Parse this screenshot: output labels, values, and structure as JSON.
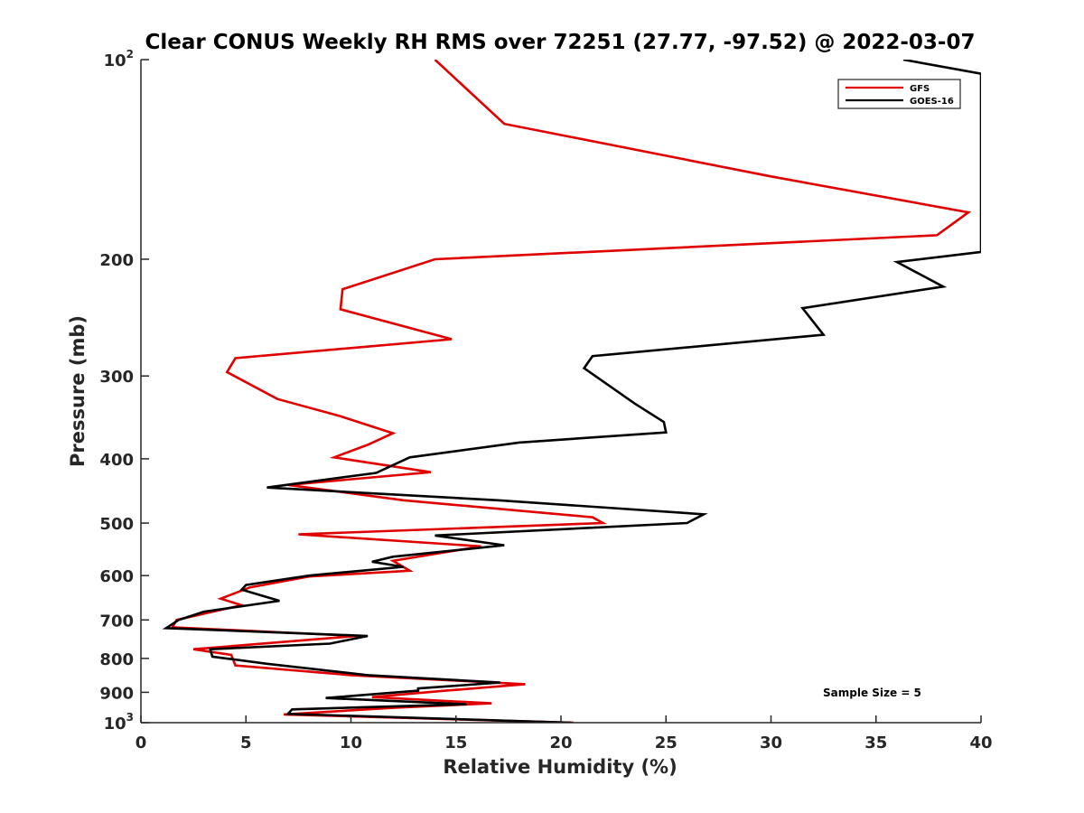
{
  "chart_data": {
    "type": "line",
    "title": "Clear CONUS Weekly RH RMS over 72251 (27.77, -97.52) @ 2022-03-07",
    "xlabel": "Relative Humidity (%)",
    "ylabel": "Pressure (mb)",
    "xlim": [
      0,
      40
    ],
    "ylim": [
      100,
      1000
    ],
    "y_scale": "log",
    "y_reversed": true,
    "x_ticks": [
      "0",
      "5",
      "10",
      "15",
      "20",
      "25",
      "30",
      "35",
      "40"
    ],
    "y_ticks": [
      {
        "value": 100,
        "base": "10",
        "exp": "2"
      },
      {
        "value": 200,
        "label": "200"
      },
      {
        "value": 300,
        "label": "300"
      },
      {
        "value": 400,
        "label": "400"
      },
      {
        "value": 500,
        "label": "500"
      },
      {
        "value": 600,
        "label": "600"
      },
      {
        "value": 700,
        "label": "700"
      },
      {
        "value": 800,
        "label": "800"
      },
      {
        "value": 900,
        "label": "900"
      },
      {
        "value": 1000,
        "base": "10",
        "exp": "3"
      }
    ],
    "grid": false,
    "legend_position": "top-right",
    "annotation": "Sample Size = 5",
    "series": [
      {
        "name": "GFS",
        "color": "#e00000",
        "points": [
          [
            14.0,
            100
          ],
          [
            17.3,
            125
          ],
          [
            30.0,
            150
          ],
          [
            39.4,
            170
          ],
          [
            37.9,
            184
          ],
          [
            14.0,
            200
          ],
          [
            9.6,
            222
          ],
          [
            9.5,
            238
          ],
          [
            14.8,
            264
          ],
          [
            4.5,
            282
          ],
          [
            4.1,
            296
          ],
          [
            6.5,
            325
          ],
          [
            9.5,
            345
          ],
          [
            12.0,
            366
          ],
          [
            10.8,
            381
          ],
          [
            9.2,
            398
          ],
          [
            13.8,
            419
          ],
          [
            7.0,
            438
          ],
          [
            12.5,
            462
          ],
          [
            21.5,
            490
          ],
          [
            22.0,
            500
          ],
          [
            7.5,
            520
          ],
          [
            16.2,
            542
          ],
          [
            12.0,
            570
          ],
          [
            12.8,
            590
          ],
          [
            8.0,
            602
          ],
          [
            5.2,
            625
          ],
          [
            3.8,
            650
          ],
          [
            4.8,
            665
          ],
          [
            3.0,
            685
          ],
          [
            1.7,
            700
          ],
          [
            1.5,
            718
          ],
          [
            10.3,
            740
          ],
          [
            2.5,
            775
          ],
          [
            4.3,
            790
          ],
          [
            4.5,
            820
          ],
          [
            10.0,
            848
          ],
          [
            18.3,
            875
          ],
          [
            14.5,
            895
          ],
          [
            11.0,
            915
          ],
          [
            16.7,
            935
          ],
          [
            12.0,
            950
          ],
          [
            6.8,
            972
          ],
          [
            20.6,
            1000
          ]
        ]
      },
      {
        "name": "GOES-16",
        "color": "#000000",
        "points": [
          [
            36.3,
            100
          ],
          [
            40.0,
            105
          ],
          [
            40.0,
            195
          ],
          [
            36.0,
            202
          ],
          [
            38.2,
            220
          ],
          [
            31.5,
            237
          ],
          [
            32.5,
            260
          ],
          [
            21.5,
            280
          ],
          [
            21.1,
            292
          ],
          [
            23.5,
            330
          ],
          [
            24.9,
            352
          ],
          [
            25.0,
            365
          ],
          [
            18.0,
            378
          ],
          [
            12.8,
            398
          ],
          [
            11.2,
            420
          ],
          [
            6.0,
            442
          ],
          [
            17.0,
            462
          ],
          [
            26.8,
            485
          ],
          [
            26.0,
            500
          ],
          [
            14.0,
            522
          ],
          [
            17.3,
            540
          ],
          [
            12.0,
            562
          ],
          [
            11.0,
            572
          ],
          [
            12.5,
            582
          ],
          [
            8.0,
            600
          ],
          [
            5.0,
            620
          ],
          [
            4.8,
            630
          ],
          [
            6.6,
            655
          ],
          [
            3.0,
            680
          ],
          [
            1.8,
            700
          ],
          [
            1.2,
            720
          ],
          [
            10.8,
            740
          ],
          [
            9.0,
            760
          ],
          [
            3.3,
            775
          ],
          [
            3.4,
            795
          ],
          [
            6.0,
            815
          ],
          [
            10.8,
            848
          ],
          [
            17.1,
            870
          ],
          [
            13.2,
            888
          ],
          [
            13.2,
            895
          ],
          [
            8.8,
            918
          ],
          [
            15.5,
            938
          ],
          [
            7.2,
            955
          ],
          [
            7.0,
            970
          ],
          [
            20.5,
            1000
          ]
        ]
      }
    ]
  }
}
